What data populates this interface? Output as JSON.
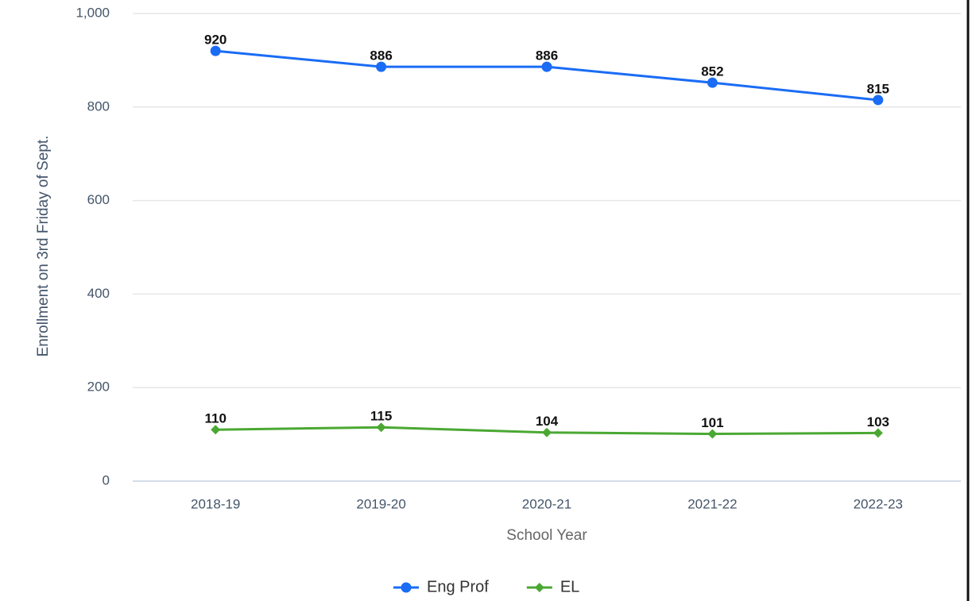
{
  "chart_data": {
    "type": "line",
    "categories": [
      "2018-19",
      "2019-20",
      "2020-21",
      "2021-22",
      "2022-23"
    ],
    "series": [
      {
        "name": "Eng Prof",
        "color": "#1a6cf5",
        "marker": "circle",
        "values": [
          920,
          886,
          886,
          852,
          815
        ]
      },
      {
        "name": "EL",
        "color": "#4aa832",
        "marker": "diamond",
        "values": [
          110,
          115,
          104,
          101,
          103
        ]
      }
    ],
    "ylim": [
      0,
      1000
    ],
    "yticks": [
      0,
      200,
      400,
      600,
      800,
      {
        "value": 1000,
        "label": "1,000"
      }
    ],
    "y_label": "Enrollment on 3rd Friday of Sept.",
    "x_label": "School Year",
    "grid": true,
    "legend": "bottom"
  }
}
